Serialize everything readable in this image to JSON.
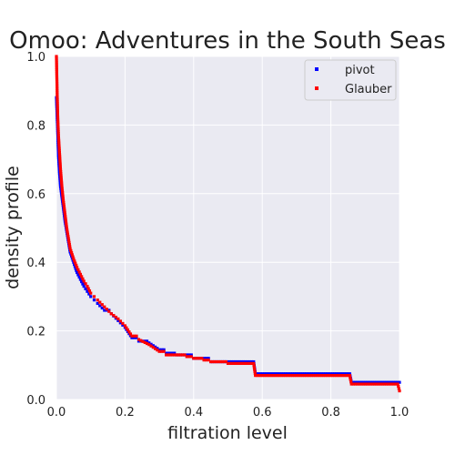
{
  "chart_data": {
    "type": "scatter",
    "title": "Omoo: Adventures in the South Seas",
    "xlabel": "filtration level",
    "ylabel": "density profile",
    "xlim": [
      0,
      1
    ],
    "ylim": [
      0,
      1
    ],
    "x_ticks": [
      "0.0",
      "0.2",
      "0.4",
      "0.6",
      "0.8",
      "1.0"
    ],
    "y_ticks": [
      "0.0",
      "0.2",
      "0.4",
      "0.6",
      "0.8",
      "1.0"
    ],
    "grid": true,
    "background_color": "#eaeaf2",
    "legend_position": "top-right",
    "series": [
      {
        "name": "pivot",
        "color": "#0000ff",
        "points": [
          [
            0.0,
            0.88
          ],
          [
            0.003,
            0.8
          ],
          [
            0.006,
            0.71
          ],
          [
            0.009,
            0.66
          ],
          [
            0.012,
            0.62
          ],
          [
            0.016,
            0.59
          ],
          [
            0.02,
            0.56
          ],
          [
            0.025,
            0.52
          ],
          [
            0.03,
            0.49
          ],
          [
            0.035,
            0.46
          ],
          [
            0.04,
            0.43
          ],
          [
            0.05,
            0.4
          ],
          [
            0.06,
            0.37
          ],
          [
            0.07,
            0.35
          ],
          [
            0.08,
            0.33
          ],
          [
            0.09,
            0.315
          ],
          [
            0.1,
            0.3
          ],
          [
            0.11,
            0.29
          ],
          [
            0.12,
            0.28
          ],
          [
            0.14,
            0.26
          ],
          [
            0.16,
            0.25
          ],
          [
            0.18,
            0.23
          ],
          [
            0.2,
            0.21
          ],
          [
            0.22,
            0.18
          ],
          [
            0.24,
            0.17
          ],
          [
            0.27,
            0.165
          ],
          [
            0.3,
            0.145
          ],
          [
            0.32,
            0.135
          ],
          [
            0.35,
            0.13
          ],
          [
            0.38,
            0.13
          ],
          [
            0.4,
            0.12
          ],
          [
            0.43,
            0.12
          ],
          [
            0.45,
            0.11
          ],
          [
            0.5,
            0.11
          ],
          [
            0.55,
            0.11
          ],
          [
            0.575,
            0.11
          ],
          [
            0.58,
            0.075
          ],
          [
            0.65,
            0.075
          ],
          [
            0.7,
            0.075
          ],
          [
            0.75,
            0.075
          ],
          [
            0.8,
            0.075
          ],
          [
            0.855,
            0.075
          ],
          [
            0.86,
            0.05
          ],
          [
            0.9,
            0.05
          ],
          [
            0.95,
            0.05
          ],
          [
            1.0,
            0.05
          ]
        ]
      },
      {
        "name": "Glauber",
        "color": "#ff0000",
        "points": [
          [
            0.0,
            1.0
          ],
          [
            0.002,
            0.9
          ],
          [
            0.004,
            0.82
          ],
          [
            0.006,
            0.77
          ],
          [
            0.009,
            0.72
          ],
          [
            0.012,
            0.67
          ],
          [
            0.016,
            0.62
          ],
          [
            0.02,
            0.58
          ],
          [
            0.025,
            0.54
          ],
          [
            0.03,
            0.5
          ],
          [
            0.035,
            0.47
          ],
          [
            0.04,
            0.44
          ],
          [
            0.05,
            0.41
          ],
          [
            0.06,
            0.385
          ],
          [
            0.07,
            0.365
          ],
          [
            0.08,
            0.345
          ],
          [
            0.09,
            0.33
          ],
          [
            0.1,
            0.31
          ],
          [
            0.11,
            0.3
          ],
          [
            0.12,
            0.29
          ],
          [
            0.14,
            0.27
          ],
          [
            0.16,
            0.25
          ],
          [
            0.18,
            0.235
          ],
          [
            0.2,
            0.215
          ],
          [
            0.22,
            0.185
          ],
          [
            0.24,
            0.175
          ],
          [
            0.27,
            0.16
          ],
          [
            0.3,
            0.14
          ],
          [
            0.32,
            0.13
          ],
          [
            0.35,
            0.13
          ],
          [
            0.38,
            0.125
          ],
          [
            0.4,
            0.12
          ],
          [
            0.43,
            0.115
          ],
          [
            0.45,
            0.11
          ],
          [
            0.5,
            0.105
          ],
          [
            0.55,
            0.105
          ],
          [
            0.575,
            0.105
          ],
          [
            0.58,
            0.07
          ],
          [
            0.65,
            0.07
          ],
          [
            0.7,
            0.07
          ],
          [
            0.75,
            0.07
          ],
          [
            0.8,
            0.07
          ],
          [
            0.855,
            0.07
          ],
          [
            0.86,
            0.045
          ],
          [
            0.9,
            0.045
          ],
          [
            0.95,
            0.045
          ],
          [
            0.995,
            0.045
          ],
          [
            1.0,
            0.025
          ]
        ]
      }
    ]
  }
}
